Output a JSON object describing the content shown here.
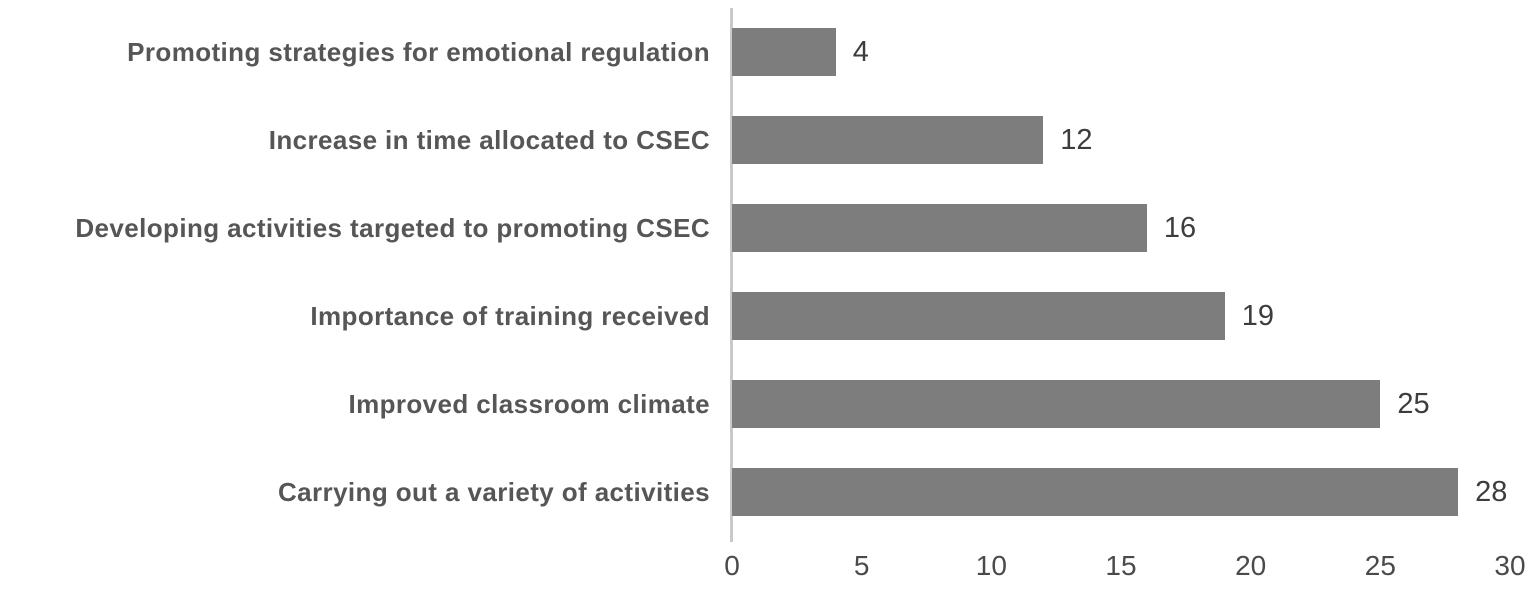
{
  "chart_data": {
    "type": "bar",
    "orientation": "horizontal",
    "title": "",
    "xlabel": "",
    "ylabel": "",
    "categories": [
      "Promoting strategies for emotional regulation",
      "Increase in time allocated to CSEC",
      "Developing activities targeted to promoting CSEC",
      "Importance of training received",
      "Improved classroom climate",
      "Carrying out a variety of activities"
    ],
    "values": [
      4,
      12,
      16,
      19,
      25,
      28
    ],
    "xlim": [
      0,
      30
    ],
    "x_ticks": [
      0,
      5,
      10,
      15,
      20,
      25,
      30
    ],
    "grid": false,
    "legend": false,
    "bar_color": "#7d7d7d",
    "axis_line_color": "#c9c9c9",
    "label_color": "#565656",
    "value_color": "#3d3d3d"
  }
}
